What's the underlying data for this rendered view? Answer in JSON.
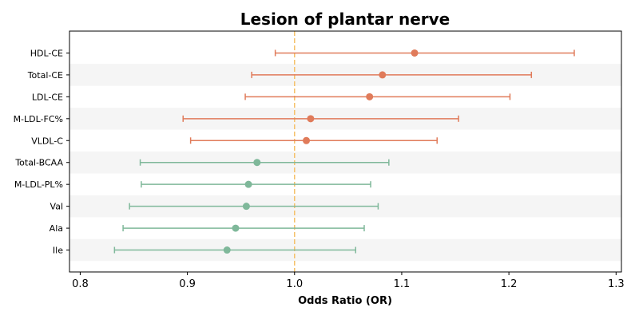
{
  "chart_data": {
    "type": "forest",
    "title": "Lesion of plantar nerve",
    "xlabel": "Odds Ratio (OR)",
    "xlim": [
      0.79,
      1.305
    ],
    "xticks": [
      "0.8",
      "0.9",
      "1.0",
      "1.1",
      "1.2",
      "1.3"
    ],
    "reference_line": 1.0,
    "reference_color": "#f5c26b",
    "colors": {
      "risk": "#e07b5a",
      "protective": "#7fb89a",
      "stripe": "#f5f5f5"
    },
    "rows": [
      {
        "label": "HDL-CE",
        "or": 1.112,
        "lower": 0.982,
        "upper": 1.261,
        "group": "risk"
      },
      {
        "label": "Total-CE",
        "or": 1.082,
        "lower": 0.96,
        "upper": 1.221,
        "group": "risk"
      },
      {
        "label": "LDL-CE",
        "or": 1.07,
        "lower": 0.954,
        "upper": 1.201,
        "group": "risk"
      },
      {
        "label": "M-LDL-FC%",
        "or": 1.015,
        "lower": 0.896,
        "upper": 1.153,
        "group": "risk"
      },
      {
        "label": "VLDL-C",
        "or": 1.011,
        "lower": 0.903,
        "upper": 1.133,
        "group": "risk"
      },
      {
        "label": "Total-BCAA",
        "or": 0.965,
        "lower": 0.856,
        "upper": 1.088,
        "group": "protective"
      },
      {
        "label": "M-LDL-PL%",
        "or": 0.957,
        "lower": 0.857,
        "upper": 1.071,
        "group": "protective"
      },
      {
        "label": "Val",
        "or": 0.955,
        "lower": 0.846,
        "upper": 1.078,
        "group": "protective"
      },
      {
        "label": "Ala",
        "or": 0.945,
        "lower": 0.84,
        "upper": 1.065,
        "group": "protective"
      },
      {
        "label": "Ile",
        "or": 0.937,
        "lower": 0.832,
        "upper": 1.057,
        "group": "protective"
      }
    ]
  }
}
